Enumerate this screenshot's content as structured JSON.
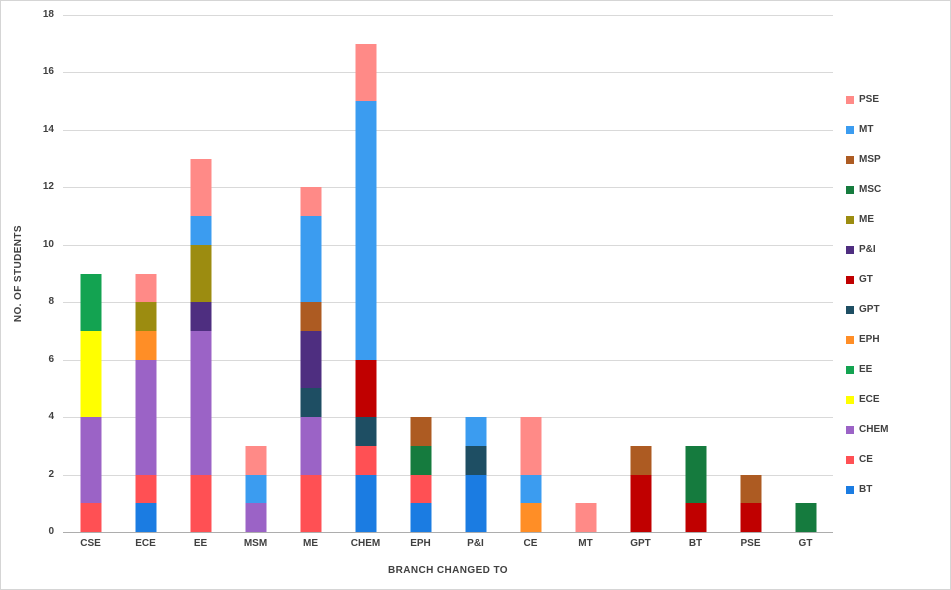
{
  "chart_data": {
    "type": "bar",
    "stacked": true,
    "title": "",
    "xlabel": "BRANCH CHANGED TO",
    "ylabel": "NO. OF STUDENTS",
    "ylim": [
      0,
      18
    ],
    "ytick_step": 2,
    "grid": "horizontal",
    "legend_position": "right",
    "categories": [
      "CSE",
      "ECE",
      "EE",
      "MSM",
      "ME",
      "CHEM",
      "EPH",
      "P&I",
      "CE",
      "MT",
      "GPT",
      "BT",
      "PSE",
      "GT"
    ],
    "series": [
      {
        "name": "BT",
        "color": "#1b7ce2",
        "values": [
          0,
          1,
          0,
          0,
          0,
          2,
          1,
          2,
          0,
          0,
          0,
          0,
          0,
          0
        ]
      },
      {
        "name": "CE",
        "color": "#ff5054",
        "values": [
          1,
          1,
          2,
          0,
          2,
          1,
          1,
          0,
          0,
          0,
          0,
          0,
          0,
          0
        ]
      },
      {
        "name": "CHEM",
        "color": "#9b63c6",
        "values": [
          3,
          4,
          5,
          1,
          2,
          0,
          0,
          0,
          0,
          0,
          0,
          0,
          0,
          0
        ]
      },
      {
        "name": "ECE",
        "color": "#ffff00",
        "values": [
          3,
          0,
          0,
          0,
          0,
          0,
          0,
          0,
          0,
          0,
          0,
          0,
          0,
          0
        ]
      },
      {
        "name": "EE",
        "color": "#13a351",
        "values": [
          2,
          0,
          0,
          0,
          0,
          0,
          0,
          0,
          0,
          0,
          0,
          0,
          0,
          0
        ]
      },
      {
        "name": "EPH",
        "color": "#ff8e26",
        "values": [
          0,
          1,
          0,
          0,
          0,
          0,
          0,
          0,
          1,
          0,
          0,
          0,
          0,
          0
        ]
      },
      {
        "name": "GPT",
        "color": "#1e4e63",
        "values": [
          0,
          0,
          0,
          0,
          1,
          1,
          0,
          1,
          0,
          0,
          0,
          0,
          0,
          0
        ]
      },
      {
        "name": "GT",
        "color": "#c00000",
        "values": [
          0,
          0,
          0,
          0,
          0,
          2,
          0,
          0,
          0,
          0,
          2,
          1,
          1,
          0
        ]
      },
      {
        "name": "P&I",
        "color": "#4e2e80",
        "values": [
          0,
          0,
          1,
          0,
          2,
          0,
          0,
          0,
          0,
          0,
          0,
          0,
          0,
          0
        ]
      },
      {
        "name": "ME",
        "color": "#9c8c10",
        "values": [
          0,
          1,
          2,
          0,
          0,
          0,
          0,
          0,
          0,
          0,
          0,
          0,
          0,
          0
        ]
      },
      {
        "name": "MSC",
        "color": "#157b3e",
        "values": [
          0,
          0,
          0,
          0,
          0,
          0,
          1,
          0,
          0,
          0,
          0,
          2,
          0,
          1
        ]
      },
      {
        "name": "MSP",
        "color": "#ad5b22",
        "values": [
          0,
          0,
          0,
          0,
          1,
          0,
          1,
          0,
          0,
          0,
          1,
          0,
          1,
          0
        ]
      },
      {
        "name": "MT",
        "color": "#3b9cf0",
        "values": [
          0,
          0,
          1,
          1,
          3,
          9,
          0,
          1,
          1,
          0,
          0,
          0,
          0,
          0
        ]
      },
      {
        "name": "PSE",
        "color": "#ff8a87",
        "values": [
          0,
          1,
          2,
          1,
          1,
          2,
          0,
          0,
          2,
          1,
          0,
          0,
          0,
          0
        ]
      }
    ],
    "legend": [
      "PSE",
      "MT",
      "MSP",
      "MSC",
      "ME",
      "P&I",
      "GT",
      "GPT",
      "EPH",
      "EE",
      "ECE",
      "CHEM",
      "CE",
      "BT"
    ]
  }
}
